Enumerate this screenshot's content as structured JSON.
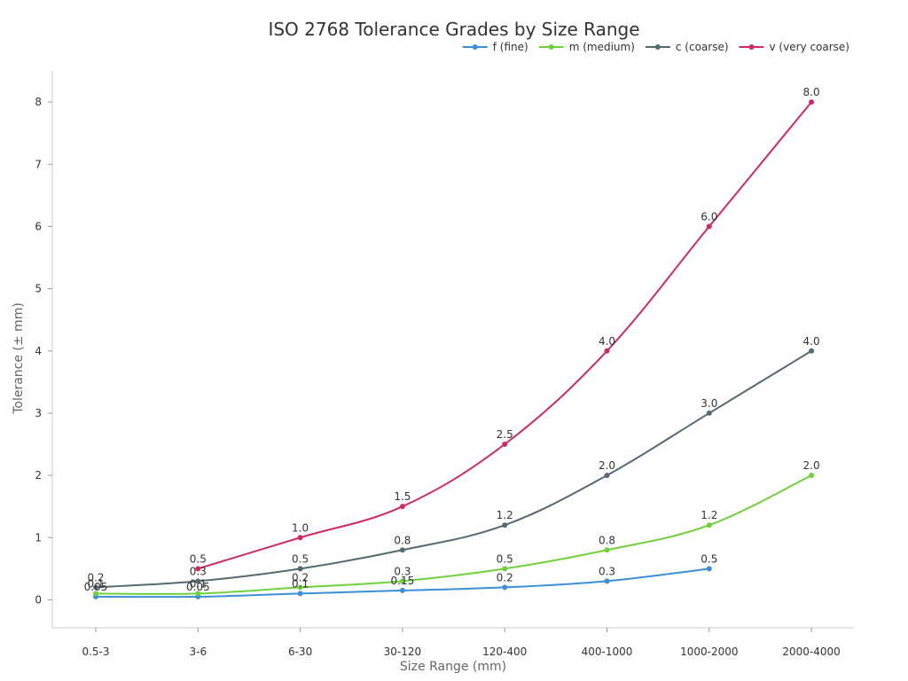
{
  "chart_data": {
    "type": "line",
    "title": "ISO 2768 Tolerance Grades by Size Range",
    "xlabel": "Size Range (mm)",
    "ylabel": "Tolerance (± mm)",
    "categories": [
      "0.5-3",
      "3-6",
      "6-30",
      "30-120",
      "120-400",
      "400-1000",
      "1000-2000",
      "2000-4000"
    ],
    "ylim": [
      -0.45,
      8.5
    ],
    "yticks": [
      0,
      1,
      2,
      3,
      4,
      5,
      6,
      7,
      8
    ],
    "grid": false,
    "legend_position": "top-right",
    "series": [
      {
        "name": "f (fine)",
        "color": "#3b8fd9",
        "values": [
          0.05,
          0.05,
          0.1,
          0.15,
          0.2,
          0.3,
          0.5,
          null
        ],
        "labels": [
          "0.05",
          "0.05",
          "0.1",
          "0.15",
          "0.2",
          "0.3",
          "0.5",
          ""
        ]
      },
      {
        "name": "m (medium)",
        "color": "#6fd13c",
        "values": [
          0.1,
          0.1,
          0.2,
          0.3,
          0.5,
          0.8,
          1.2,
          2.0
        ],
        "labels": [
          "0.1",
          "0.1",
          "0.2",
          "0.3",
          "0.5",
          "0.8",
          "1.2",
          "2.0"
        ]
      },
      {
        "name": "c (coarse)",
        "color": "#546a72",
        "values": [
          0.2,
          0.3,
          0.5,
          0.8,
          1.2,
          2.0,
          3.0,
          4.0
        ],
        "labels": [
          "0.2",
          "0.3",
          "0.5",
          "0.8",
          "1.2",
          "2.0",
          "3.0",
          "4.0"
        ]
      },
      {
        "name": "v (very coarse)",
        "color": "#cf2a63",
        "values": [
          null,
          0.5,
          1.0,
          1.5,
          2.5,
          4.0,
          6.0,
          8.0
        ],
        "labels": [
          "",
          "0.5",
          "1.0",
          "1.5",
          "2.5",
          "4.0",
          "6.0",
          "8.0"
        ]
      }
    ]
  }
}
